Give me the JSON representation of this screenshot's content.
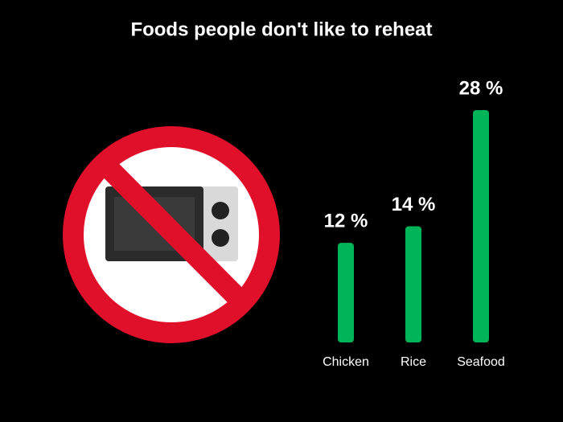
{
  "chart_data": {
    "type": "bar",
    "title": "Foods people don't like to reheat",
    "categories": [
      "Chicken",
      "Rice",
      "Seafood"
    ],
    "values": [
      12,
      14,
      28
    ],
    "value_labels": [
      "12 %",
      "14 %",
      "28 %"
    ],
    "color": "#00b45a"
  }
}
